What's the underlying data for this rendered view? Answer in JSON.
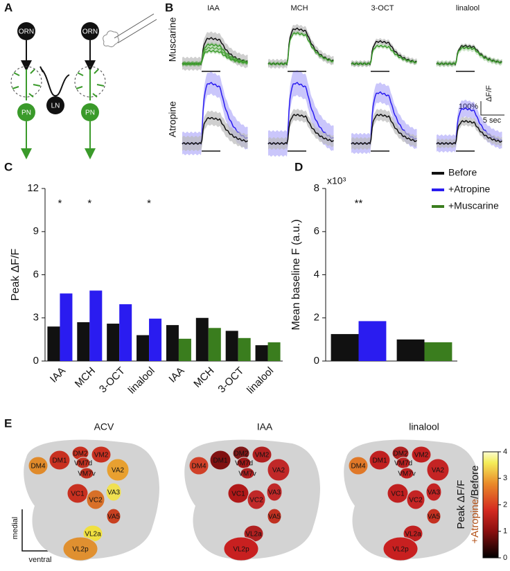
{
  "panel_a": {
    "letter": "A",
    "nodes": [
      {
        "label": "ORN"
      },
      {
        "label": "ORN"
      },
      {
        "label": "LN"
      },
      {
        "label": "PN"
      },
      {
        "label": "PN"
      }
    ]
  },
  "panel_b": {
    "letter": "B",
    "columns": [
      "IAA",
      "MCH",
      "3-OCT",
      "linalool"
    ],
    "rows": [
      "Muscarine",
      "Atropine"
    ],
    "scale_y": "100%",
    "scale_y_unit": "ΔF/F",
    "scale_x": "5 sec"
  },
  "chart_data": [
    {
      "type": "bar",
      "letter": "C",
      "y_label": "Peak ΔF/F",
      "categories": [
        "IAA",
        "MCH",
        "3-OCT",
        "linalool",
        "IAA",
        "MCH",
        "3-OCT",
        "linalool"
      ],
      "series": [
        {
          "color": "#111111",
          "values": [
            2.4,
            2.7,
            2.6,
            1.8,
            2.5,
            3.0,
            2.1,
            1.1
          ]
        },
        {
          "color": "#2a1cf0",
          "values": [
            4.7,
            4.9,
            3.95,
            2.95,
            null,
            null,
            null,
            null
          ]
        },
        {
          "color": "#3a7d1e",
          "values": [
            null,
            null,
            null,
            null,
            1.55,
            2.3,
            1.6,
            1.3
          ]
        }
      ],
      "significance": [
        "*",
        "*",
        null,
        "*",
        null,
        null,
        null,
        null
      ],
      "ylim": [
        0,
        12
      ],
      "yticks": [
        0,
        3,
        6,
        9,
        12
      ]
    },
    {
      "type": "bar",
      "letter": "D",
      "y_label": "Mean baseline F (a.u.)",
      "y_multiplier": "x10³",
      "categories": [
        null,
        null
      ],
      "series": [
        {
          "name": "Before",
          "color": "#111111",
          "values": [
            1.25,
            1.0
          ]
        },
        {
          "name": "+Atropine",
          "color": "#2a1cf0",
          "values": [
            1.85,
            null
          ]
        },
        {
          "name": "+Muscarine",
          "color": "#3a7d1e",
          "values": [
            null,
            0.87
          ]
        }
      ],
      "significance": [
        "**",
        null
      ],
      "ylim": [
        0,
        8
      ],
      "yticks": [
        0,
        2,
        4,
        6,
        8
      ]
    }
  ],
  "panel_e": {
    "letter": "E",
    "axis_medial": "medial",
    "axis_ventral": "ventral",
    "maps": [
      {
        "title": "ACV",
        "regions": [
          {
            "label": "DM4",
            "color": "#e08a2a"
          },
          {
            "label": "DM1",
            "color": "#c83020"
          },
          {
            "label": "DM2",
            "color": "#c83020"
          },
          {
            "label": "VM2",
            "color": "#c83020"
          },
          {
            "label": "VM7d",
            "color": "#c03020"
          },
          {
            "label": "VM7v",
            "color": "#c03020"
          },
          {
            "label": "VA2",
            "color": "#e8a030"
          },
          {
            "label": "VC1",
            "color": "#c83020"
          },
          {
            "label": "VC2",
            "color": "#d87028"
          },
          {
            "label": "VA3",
            "color": "#f0e050"
          },
          {
            "label": "VA5",
            "color": "#c84020"
          },
          {
            "label": "VL2a",
            "color": "#f0e040"
          },
          {
            "label": "VL2p",
            "color": "#e09030"
          }
        ]
      },
      {
        "title": "IAA",
        "regions": [
          {
            "label": "DM4",
            "color": "#d04028"
          },
          {
            "label": "DM1",
            "color": "#801010"
          },
          {
            "label": "DM2",
            "color": "#801818"
          },
          {
            "label": "VM2",
            "color": "#b02020"
          },
          {
            "label": "VM7d",
            "color": "#a01818"
          },
          {
            "label": "VM7v",
            "color": "#b02020"
          },
          {
            "label": "VA2",
            "color": "#c02828"
          },
          {
            "label": "VC1",
            "color": "#b01818"
          },
          {
            "label": "VC2",
            "color": "#c02828"
          },
          {
            "label": "VA3",
            "color": "#c02828"
          },
          {
            "label": "VA5",
            "color": "#c03020"
          },
          {
            "label": "VL2a",
            "color": "#b02020"
          },
          {
            "label": "VL2p",
            "color": "#c82020"
          }
        ]
      },
      {
        "title": "linalool",
        "regions": [
          {
            "label": "DM4",
            "color": "#e07828"
          },
          {
            "label": "DM1",
            "color": "#c02020"
          },
          {
            "label": "DM2",
            "color": "#b02020"
          },
          {
            "label": "VM2",
            "color": "#c02020"
          },
          {
            "label": "VM7d",
            "color": "#b82020"
          },
          {
            "label": "VM7v",
            "color": "#c02020"
          },
          {
            "label": "VA2",
            "color": "#c42424"
          },
          {
            "label": "VC1",
            "color": "#c02020"
          },
          {
            "label": "VC2",
            "color": "#c42424"
          },
          {
            "label": "VA3",
            "color": "#c42424"
          },
          {
            "label": "VA5",
            "color": "#c43020"
          },
          {
            "label": "VL2a",
            "color": "#c02020"
          },
          {
            "label": "VL2p",
            "color": "#c82020"
          }
        ]
      }
    ],
    "colorbar": {
      "ticks": [
        0,
        1,
        2,
        3,
        4
      ],
      "label_main": "Peak  ΔF/F",
      "label_num": "+Atropine",
      "label_den": "/Before"
    }
  }
}
